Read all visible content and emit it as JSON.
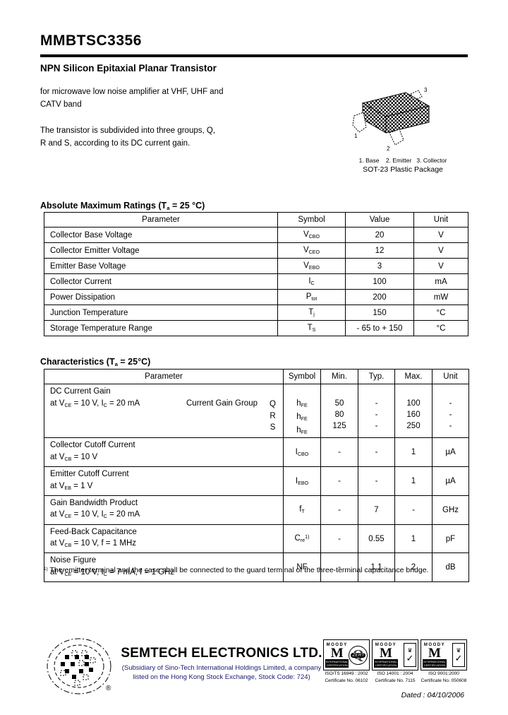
{
  "header": {
    "part_number": "MMBTSC3356",
    "subtitle": "NPN Silicon Epitaxial Planar Transistor",
    "description_1": "for microwave low noise amplifier at VHF, UHF and\nCATV band",
    "description_2": "The transistor is subdivided into three groups, Q,\nR and S, according to its DC current gain."
  },
  "package": {
    "pin_labels": "1. Base    2. Emitter   3. Collector",
    "name": "SOT-23 Plastic Package",
    "pin_numbers": [
      "1",
      "2",
      "3"
    ]
  },
  "abs_max_ratings": {
    "title": "Absolute Maximum Ratings (T_{a} = 25 °C)",
    "columns": [
      "Parameter",
      "Symbol",
      "Value",
      "Unit"
    ],
    "rows": [
      {
        "parameter": "Collector Base Voltage",
        "symbol": "V_{CBO}",
        "value": "20",
        "unit": "V"
      },
      {
        "parameter": "Collector Emitter Voltage",
        "symbol": "V_{CEO}",
        "value": "12",
        "unit": "V"
      },
      {
        "parameter": "Emitter Base Voltage",
        "symbol": "V_{EBO}",
        "value": "3",
        "unit": "V"
      },
      {
        "parameter": "Collector Current",
        "symbol": "I_{C}",
        "value": "100",
        "unit": "mA"
      },
      {
        "parameter": "Power Dissipation",
        "symbol": "P_{tot}",
        "value": "200",
        "unit": "mW"
      },
      {
        "parameter": "Junction Temperature",
        "symbol": "T_{j}",
        "value": "150",
        "unit": "°C"
      },
      {
        "parameter": "Storage Temperature Range",
        "symbol": "T_{S}",
        "value": "- 65 to + 150",
        "unit": "°C"
      }
    ]
  },
  "characteristics": {
    "title": "Characteristics (T_{a} = 25°C)",
    "columns": [
      "Parameter",
      "Symbol",
      "Min.",
      "Typ.",
      "Max.",
      "Unit"
    ],
    "rows": [
      {
        "param_lines": [
          "DC Current Gain",
          "at V_{CE} = 10 V, I_{C} = 20 mA"
        ],
        "group_label": "Current Gain Group",
        "groups": [
          "Q",
          "R",
          "S"
        ],
        "entries": [
          {
            "symbol": "h_{FE}",
            "min": "50",
            "typ": "-",
            "max": "100",
            "unit": "-"
          },
          {
            "symbol": "h_{FE}",
            "min": "80",
            "typ": "-",
            "max": "160",
            "unit": "-"
          },
          {
            "symbol": "h_{FE}",
            "min": "125",
            "typ": "-",
            "max": "250",
            "unit": "-"
          }
        ]
      },
      {
        "param_lines": [
          "Collector Cutoff Current",
          "at V_{CB} = 10 V"
        ],
        "entries": [
          {
            "symbol": "I_{CBO}",
            "min": "-",
            "typ": "-",
            "max": "1",
            "unit": "µA"
          }
        ]
      },
      {
        "param_lines": [
          "Emitter Cutoff Current",
          "at V_{EB} = 1 V"
        ],
        "entries": [
          {
            "symbol": "I_{EBO}",
            "min": "-",
            "typ": "-",
            "max": "1",
            "unit": "µA"
          }
        ]
      },
      {
        "param_lines": [
          "Gain Bandwidth Product",
          "at V_{CE} = 10 V, I_{C} = 20 mA"
        ],
        "entries": [
          {
            "symbol": "f_{T}",
            "min": "-",
            "typ": "7",
            "max": "-",
            "unit": "GHz"
          }
        ]
      },
      {
        "param_lines": [
          "Feed-Back Capacitance",
          "at V_{CB} = 10 V, f = 1 MHz"
        ],
        "entries": [
          {
            "symbol": "C_{re}^{1)}",
            "min": "-",
            "typ": "0.55",
            "max": "1",
            "unit": "pF"
          }
        ]
      },
      {
        "param_lines": [
          "Noise Figure",
          "at V_{CE} = 10 V, I_{C} = 7 mA, f = 1 GHz"
        ],
        "entries": [
          {
            "symbol": "NF",
            "min": "-",
            "typ": "1.1",
            "max": "2",
            "unit": "dB"
          }
        ]
      }
    ],
    "footnote": "^{1)} The emitter terminal and the case shall be connected to the guard terminal of the three-terminal capacitance bridge."
  },
  "footer": {
    "company": "SEMTECH ELECTRONICS LTD.",
    "subsidiary": "(Subsidiary of Sino-Tech International Holdings Limited, a company\nlisted on the Hong Kong Stock Exchange, Stock Code: 724)",
    "subsidiary_color": "#1b1b6f",
    "registered_mark": "®",
    "certifications": [
      {
        "brand": "MOODY",
        "org": "INTERNATIONAL CERTIFICATION",
        "badge": "ZERT",
        "line1": "ISO/TS 16949 : 2002",
        "line2": "Certificate No. 06102"
      },
      {
        "brand": "MOODY",
        "org": "INTERNATIONAL CERTIFICATION",
        "badge": "UKAS",
        "line1": "ISO 14001 : 2004",
        "line2": "Certificate No. 7115"
      },
      {
        "brand": "MOODY",
        "org": "INTERNATIONAL CERTIFICATION",
        "badge": "UKAS",
        "line1": "ISO 9001:2000",
        "line2": "Certificate No. 050608"
      }
    ],
    "dated": "Dated : 04/10/2006"
  }
}
